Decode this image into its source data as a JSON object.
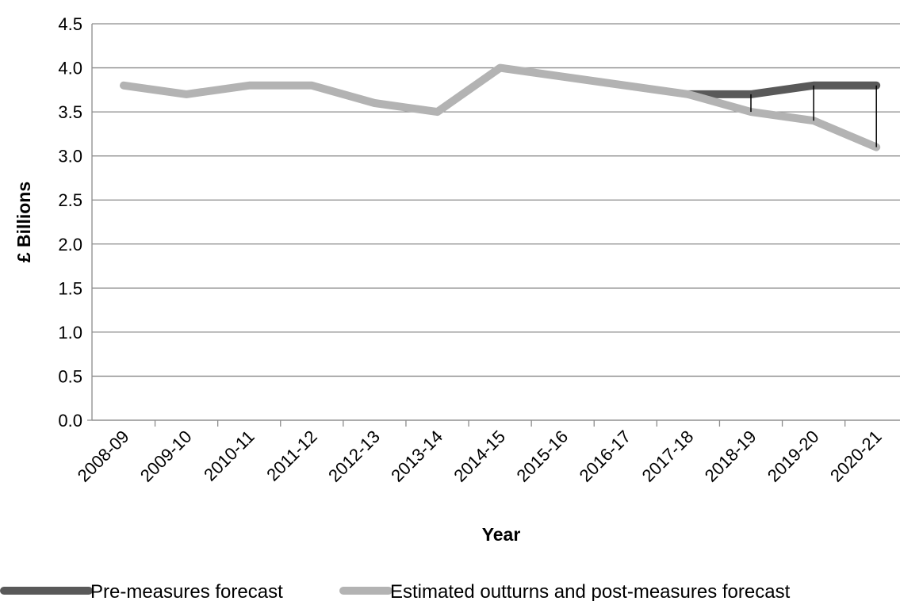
{
  "chart_data": {
    "type": "line",
    "title": "",
    "xlabel": "Year",
    "ylabel": "£ Billions",
    "ylim": [
      0,
      4.5
    ],
    "ytick_step": 0.5,
    "yticks": [
      "0.0",
      "0.5",
      "1.0",
      "1.5",
      "2.0",
      "2.5",
      "3.0",
      "3.5",
      "4.0",
      "4.5"
    ],
    "grid": "horizontal",
    "legend_position": "bottom",
    "categories": [
      "2008-09",
      "2009-10",
      "2010-11",
      "2011-12",
      "2012-13",
      "2013-14",
      "2014-15",
      "2015-16",
      "2016-17",
      "2017-18",
      "2018-19",
      "2019-20",
      "2020-21"
    ],
    "series": [
      {
        "name": "Pre-measures forecast",
        "color": "#595959",
        "values": [
          null,
          null,
          null,
          null,
          null,
          null,
          null,
          null,
          null,
          3.7,
          3.7,
          3.8,
          3.8
        ]
      },
      {
        "name": "Estimated outturns and post-measures forecast",
        "color": "#b3b3b3",
        "values": [
          3.8,
          3.7,
          3.8,
          3.8,
          3.6,
          3.5,
          4.0,
          3.9,
          3.8,
          3.7,
          3.5,
          3.4,
          3.1
        ]
      }
    ],
    "gap_markers": [
      "2018-19",
      "2019-20",
      "2020-21"
    ]
  }
}
